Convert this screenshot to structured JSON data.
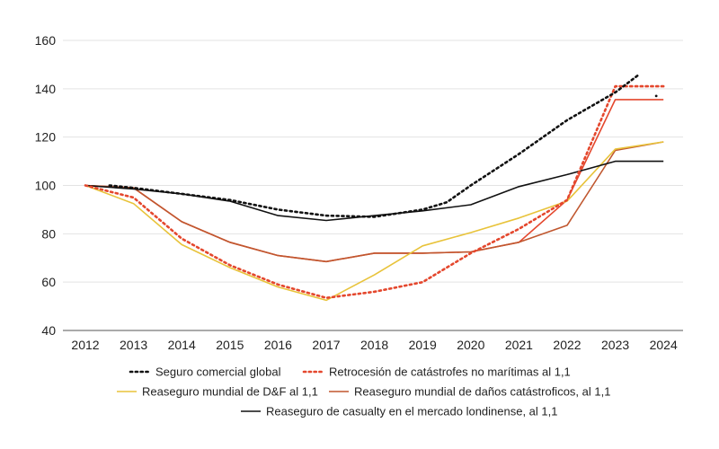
{
  "chart_data": {
    "type": "line",
    "title": "",
    "xlabel": "",
    "ylabel": "",
    "ylim": [
      40,
      160
    ],
    "yticks": [
      40,
      60,
      80,
      100,
      120,
      140,
      160
    ],
    "x": [
      "2012",
      "2013",
      "2014",
      "2015",
      "2016",
      "2017",
      "2018",
      "2019",
      "2020",
      "2021",
      "2022",
      "2023",
      "2024"
    ],
    "grid": true,
    "legend_position": "bottom",
    "series": [
      {
        "name": "Seguro comercial global",
        "color": "#111111",
        "style": "dotted",
        "points": [
          [
            2012.5,
            100
          ],
          [
            2013,
            99
          ],
          [
            2014,
            96.5
          ],
          [
            2015,
            94
          ],
          [
            2016,
            90
          ],
          [
            2017,
            87.5
          ],
          [
            2018,
            87
          ],
          [
            2019,
            90
          ],
          [
            2019.5,
            93
          ],
          [
            2020,
            100
          ],
          [
            2021,
            113
          ],
          [
            2022,
            127
          ],
          [
            2023,
            138.5
          ],
          [
            2023.5,
            146
          ]
        ],
        "extra_points": [
          [
            2023.85,
            137
          ]
        ]
      },
      {
        "name": "Retrocesión de catástrofes no marítimas al 1,1",
        "color": "#e4472d",
        "style": "dotted",
        "points": [
          [
            2012,
            100
          ],
          [
            2013,
            95
          ],
          [
            2014,
            78
          ],
          [
            2015,
            67
          ],
          [
            2016,
            59
          ],
          [
            2017,
            53.5
          ],
          [
            2018,
            56
          ],
          [
            2019,
            60
          ],
          [
            2020,
            72
          ],
          [
            2021,
            82
          ],
          [
            2022,
            94
          ],
          [
            2023,
            141
          ],
          [
            2024,
            141
          ]
        ]
      },
      {
        "name": "Reaseguro mundial de D&F al 1,1",
        "color": "#e8c33a",
        "style": "solid",
        "points": [
          [
            2012,
            100
          ],
          [
            2013,
            92.5
          ],
          [
            2014,
            75.5
          ],
          [
            2015,
            66
          ],
          [
            2016,
            58
          ],
          [
            2017,
            52.5
          ],
          [
            2018,
            63
          ],
          [
            2019,
            75
          ],
          [
            2020,
            80.5
          ],
          [
            2021,
            86.5
          ],
          [
            2022,
            93.5
          ],
          [
            2023,
            115
          ],
          [
            2024,
            118
          ]
        ]
      },
      {
        "name": "Reaseguro mundial de daños catástroficos, al 1,1",
        "color": "#c0572f",
        "style": "solid",
        "points": [
          [
            2012,
            100
          ],
          [
            2013,
            99
          ],
          [
            2014,
            85
          ],
          [
            2015,
            76.5
          ],
          [
            2016,
            71
          ],
          [
            2017,
            68.5
          ],
          [
            2018,
            72
          ],
          [
            2019,
            72
          ],
          [
            2020,
            72.5
          ],
          [
            2021,
            76.5
          ],
          [
            2022,
            83.5
          ],
          [
            2023,
            114.5
          ],
          [
            2024,
            118
          ]
        ]
      },
      {
        "name": "Reaseguro de casualty en el mercado londinense, al 1,1",
        "color": "#111111",
        "style": "solid",
        "points": [
          [
            2012,
            100
          ],
          [
            2013,
            98.5
          ],
          [
            2014,
            96.5
          ],
          [
            2015,
            93.5
          ],
          [
            2016,
            87.5
          ],
          [
            2017,
            85.5
          ],
          [
            2018,
            87.5
          ],
          [
            2019,
            89.5
          ],
          [
            2020,
            92
          ],
          [
            2021,
            99.5
          ],
          [
            2022,
            104.5
          ],
          [
            2023,
            110
          ],
          [
            2024,
            110
          ]
        ]
      },
      {
        "name": "",
        "color": "#e4472d",
        "style": "solid",
        "show_in_legend": false,
        "points": [
          [
            2012,
            100
          ],
          [
            2013,
            99
          ],
          [
            2014,
            85
          ],
          [
            2015,
            76.5
          ],
          [
            2016,
            71
          ],
          [
            2017,
            68.5
          ],
          [
            2018,
            72
          ],
          [
            2019,
            72
          ],
          [
            2020,
            72.5
          ],
          [
            2021,
            76.5
          ],
          [
            2022,
            94
          ],
          [
            2023,
            135.5
          ],
          [
            2024,
            135.5
          ]
        ]
      }
    ]
  }
}
